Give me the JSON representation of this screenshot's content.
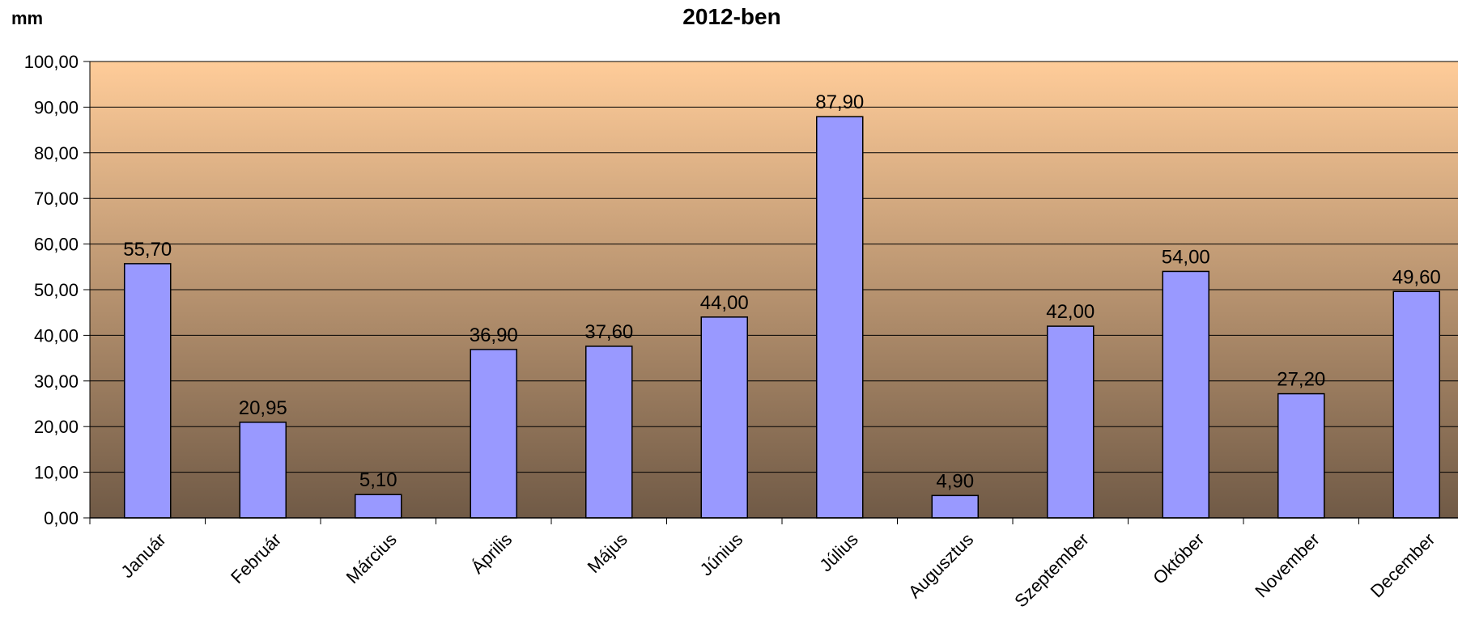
{
  "chart_data": {
    "type": "bar",
    "title": "2012-ben",
    "ylabel": "mm",
    "xlabel": "",
    "ylim": [
      0,
      100
    ],
    "yticks": [
      "0,00",
      "10,00",
      "20,00",
      "30,00",
      "40,00",
      "50,00",
      "60,00",
      "70,00",
      "80,00",
      "90,00",
      "100,00"
    ],
    "grid": true,
    "legend": "none",
    "categories": [
      "Január",
      "Február",
      "Március",
      "Április",
      "Május",
      "Június",
      "Július",
      "Augusztus",
      "Szeptember",
      "Október",
      "November",
      "December"
    ],
    "values": [
      55.7,
      20.95,
      5.1,
      36.9,
      37.6,
      44.0,
      87.9,
      4.9,
      42.0,
      54.0,
      27.2,
      49.6
    ],
    "value_labels": [
      "55,70",
      "20,95",
      "5,10",
      "36,90",
      "37,60",
      "44,00",
      "87,90",
      "4,90",
      "42,00",
      "54,00",
      "27,20",
      "49,60"
    ],
    "colors": {
      "bar": "#9999ff",
      "bar_stroke": "#000000",
      "bg_top": "#ffcc99",
      "bg_bottom": "#705a46",
      "grid": "#000000"
    }
  }
}
